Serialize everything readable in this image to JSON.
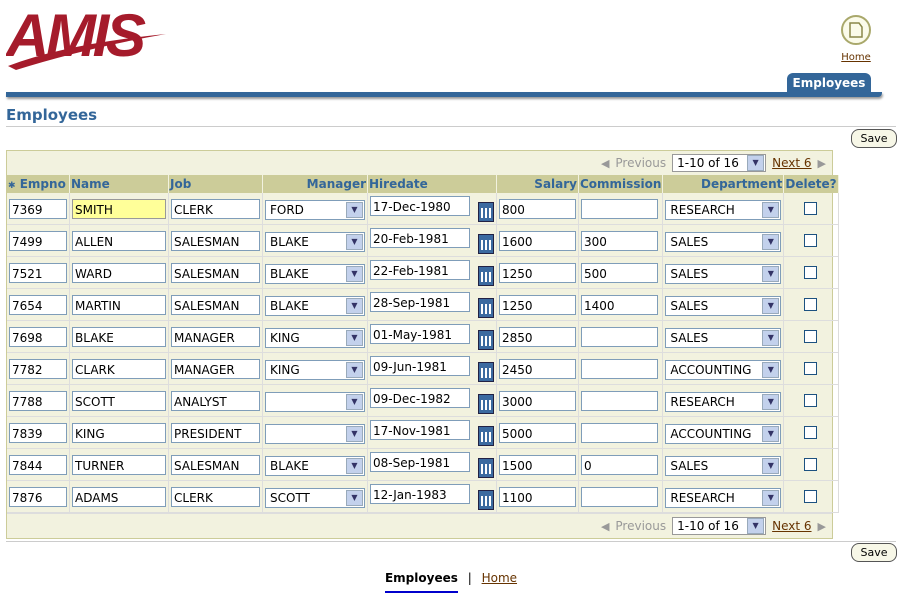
{
  "brand": {
    "logo_text": "AMIS",
    "color": "#a51b2b"
  },
  "global": {
    "home_label": "Home"
  },
  "tabs": [
    {
      "label": "Employees",
      "active": true
    }
  ],
  "page": {
    "title": "Employees",
    "save_label": "Save"
  },
  "pager": {
    "previous_label": "Previous",
    "range": "1-10 of 16",
    "next_label": "Next 6"
  },
  "columns": [
    "Empno",
    "Name",
    "Job",
    "Manager",
    "Hiredate",
    "Salary",
    "Commission",
    "Department",
    "Delete?"
  ],
  "rows": [
    {
      "empno": "7369",
      "name": "SMITH",
      "job": "CLERK",
      "manager": "FORD",
      "hiredate": "17-Dec-1980",
      "salary": "800",
      "commission": "",
      "department": "RESEARCH",
      "delete": false
    },
    {
      "empno": "7499",
      "name": "ALLEN",
      "job": "SALESMAN",
      "manager": "BLAKE",
      "hiredate": "20-Feb-1981",
      "salary": "1600",
      "commission": "300",
      "department": "SALES",
      "delete": false
    },
    {
      "empno": "7521",
      "name": "WARD",
      "job": "SALESMAN",
      "manager": "BLAKE",
      "hiredate": "22-Feb-1981",
      "salary": "1250",
      "commission": "500",
      "department": "SALES",
      "delete": false
    },
    {
      "empno": "7654",
      "name": "MARTIN",
      "job": "SALESMAN",
      "manager": "BLAKE",
      "hiredate": "28-Sep-1981",
      "salary": "1250",
      "commission": "1400",
      "department": "SALES",
      "delete": false
    },
    {
      "empno": "7698",
      "name": "BLAKE",
      "job": "MANAGER",
      "manager": "KING",
      "hiredate": "01-May-1981",
      "salary": "2850",
      "commission": "",
      "department": "SALES",
      "delete": false
    },
    {
      "empno": "7782",
      "name": "CLARK",
      "job": "MANAGER",
      "manager": "KING",
      "hiredate": "09-Jun-1981",
      "salary": "2450",
      "commission": "",
      "department": "ACCOUNTING",
      "delete": false
    },
    {
      "empno": "7788",
      "name": "SCOTT",
      "job": "ANALYST",
      "manager": "",
      "hiredate": "09-Dec-1982",
      "salary": "3000",
      "commission": "",
      "department": "RESEARCH",
      "delete": false
    },
    {
      "empno": "7839",
      "name": "KING",
      "job": "PRESIDENT",
      "manager": "",
      "hiredate": "17-Nov-1981",
      "salary": "5000",
      "commission": "",
      "department": "ACCOUNTING",
      "delete": false
    },
    {
      "empno": "7844",
      "name": "TURNER",
      "job": "SALESMAN",
      "manager": "BLAKE",
      "hiredate": "08-Sep-1981",
      "salary": "1500",
      "commission": "0",
      "department": "SALES",
      "delete": false
    },
    {
      "empno": "7876",
      "name": "ADAMS",
      "job": "CLERK",
      "manager": "SCOTT",
      "hiredate": "12-Jan-1983",
      "salary": "1100",
      "commission": "",
      "department": "RESEARCH",
      "delete": false
    }
  ],
  "footer": {
    "current": "Employees",
    "separator": "|",
    "home": "Home"
  }
}
